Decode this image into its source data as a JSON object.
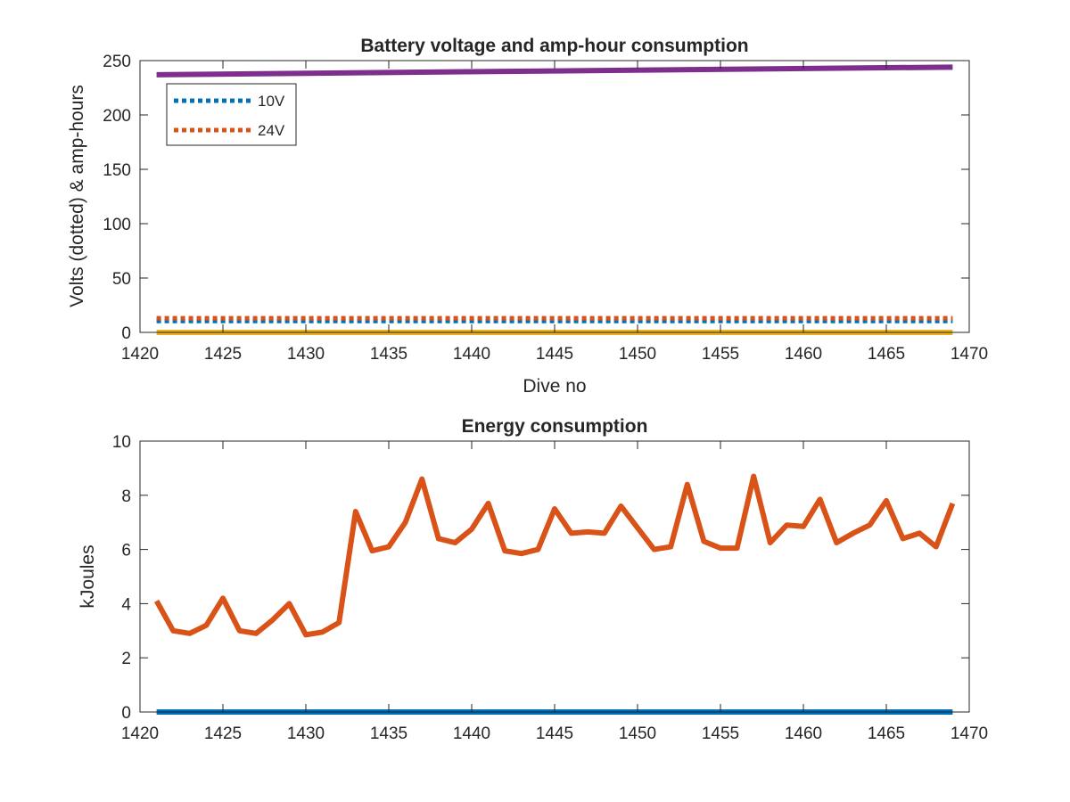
{
  "chart_data": [
    {
      "type": "line",
      "title": "Battery voltage and amp-hour consumption",
      "xlabel": "Dive no",
      "ylabel": "Volts (dotted) & amp-hours",
      "xlim": [
        1420,
        1470
      ],
      "ylim": [
        0,
        250
      ],
      "xticks": [
        "1420",
        "1425",
        "1430",
        "1435",
        "1440",
        "1445",
        "1450",
        "1455",
        "1460",
        "1465",
        "1470"
      ],
      "yticks": [
        "0",
        "50",
        "100",
        "150",
        "200",
        "250"
      ],
      "grid": false,
      "legend": {
        "placement": "top-left",
        "entries": [
          {
            "label": "10V",
            "color": "#0072BD",
            "style": "dotted"
          },
          {
            "label": "24V",
            "color": "#D95319",
            "style": "dotted"
          }
        ]
      },
      "series": [
        {
          "name": "10V",
          "color": "#0072BD",
          "style": "dotted",
          "x": [
            1421,
            1469
          ],
          "y": [
            10.5,
            10.5
          ]
        },
        {
          "name": "24V",
          "color": "#D95319",
          "style": "dotted",
          "x": [
            1421,
            1469
          ],
          "y": [
            13,
            13
          ]
        },
        {
          "color": "#EDB120",
          "style": "solid",
          "x": [
            1421,
            1469
          ],
          "y": [
            0,
            0
          ]
        },
        {
          "color": "#7E2F8E",
          "style": "solid",
          "x": [
            1421,
            1469
          ],
          "y": [
            237,
            244
          ]
        }
      ]
    },
    {
      "type": "line",
      "title": "Energy consumption",
      "xlabel": "",
      "ylabel": "kJoules",
      "xlim": [
        1420,
        1470
      ],
      "ylim": [
        0,
        10
      ],
      "xticks": [
        "1420",
        "1425",
        "1430",
        "1435",
        "1440",
        "1445",
        "1450",
        "1455",
        "1460",
        "1465",
        "1470"
      ],
      "yticks": [
        "0",
        "2",
        "4",
        "6",
        "8",
        "10"
      ],
      "grid": false,
      "series": [
        {
          "color": "#0072BD",
          "style": "solid",
          "x": [
            1421,
            1469
          ],
          "y": [
            0,
            0
          ]
        },
        {
          "color": "#D95319",
          "style": "solid",
          "x": [
            1421,
            1422,
            1423,
            1424,
            1425,
            1426,
            1427,
            1428,
            1429,
            1430,
            1431,
            1432,
            1433,
            1434,
            1435,
            1436,
            1437,
            1438,
            1439,
            1440,
            1441,
            1442,
            1443,
            1444,
            1445,
            1446,
            1447,
            1448,
            1449,
            1450,
            1451,
            1452,
            1453,
            1454,
            1455,
            1456,
            1457,
            1458,
            1459,
            1460,
            1461,
            1462,
            1463,
            1464,
            1465,
            1466,
            1467,
            1468,
            1469
          ],
          "y": [
            4.1,
            3.0,
            2.9,
            3.2,
            4.2,
            3.0,
            2.9,
            3.4,
            4.0,
            2.85,
            2.95,
            3.3,
            7.4,
            5.95,
            6.1,
            7.0,
            8.6,
            6.4,
            6.25,
            6.75,
            7.7,
            5.95,
            5.85,
            6.0,
            7.5,
            6.6,
            6.65,
            6.6,
            7.6,
            6.8,
            6.0,
            6.1,
            8.4,
            6.3,
            6.05,
            6.05,
            8.7,
            6.25,
            6.9,
            6.85,
            7.85,
            6.25,
            6.6,
            6.9,
            7.8,
            6.4,
            6.6,
            6.1,
            7.7
          ]
        }
      ]
    }
  ]
}
